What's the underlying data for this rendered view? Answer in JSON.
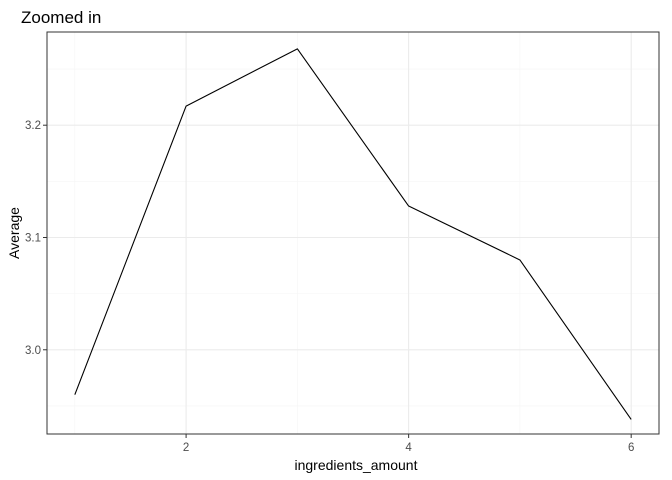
{
  "chart_data": {
    "type": "line",
    "title": "Zoomed in",
    "xlabel": "ingredients_amount",
    "ylabel": "Average",
    "x": [
      1,
      2,
      3,
      4,
      5,
      6
    ],
    "series": [
      {
        "values": [
          2.96,
          3.217,
          3.268,
          3.128,
          3.08,
          2.938
        ]
      }
    ],
    "xlim": [
      0.75,
      6.25
    ],
    "ylim": [
      2.925,
      3.283
    ],
    "x_ticks": [
      2,
      4,
      6
    ],
    "x_tick_labels": [
      "2",
      "4",
      "6"
    ],
    "y_ticks": [
      3.0,
      3.1,
      3.2
    ],
    "y_tick_labels": [
      "3.0",
      "3.1",
      "3.2"
    ],
    "grid": true,
    "legend": "none",
    "colors": {
      "line": "#000000",
      "grid_major": "#ebebeb",
      "grid_minor": "#f5f5f5",
      "panel_border": "#333333"
    }
  }
}
